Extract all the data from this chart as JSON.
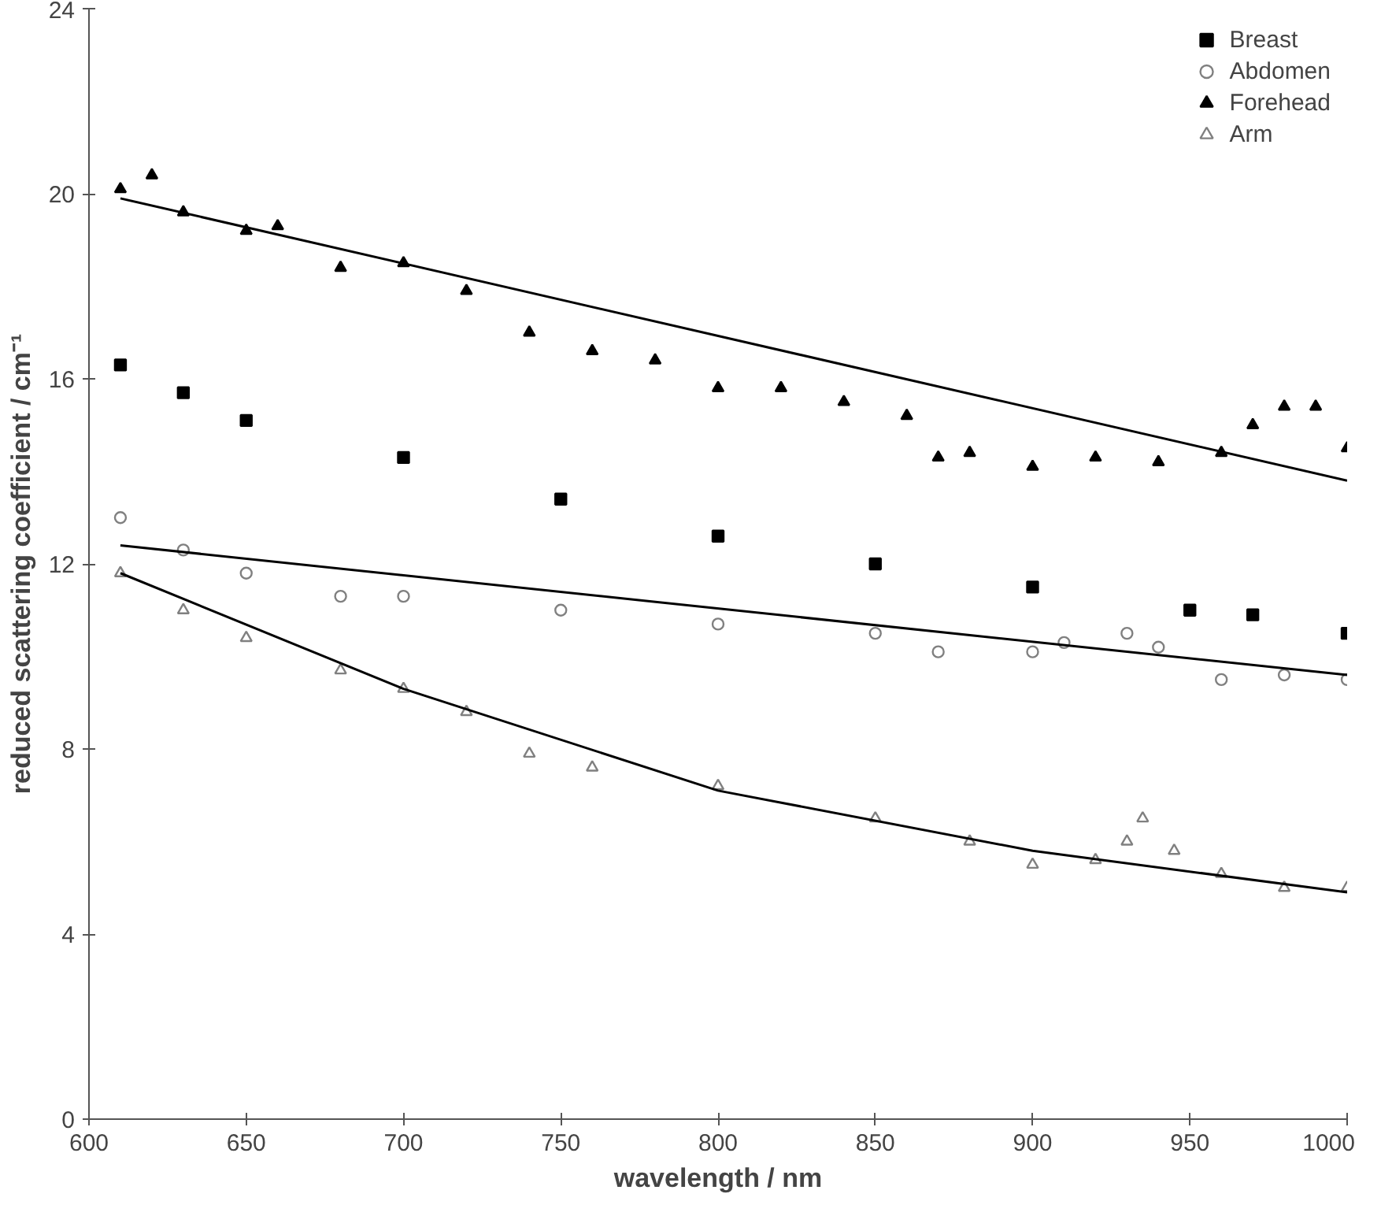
{
  "chart_data": {
    "type": "scatter",
    "xlabel": "wavelength / nm",
    "ylabel": "reduced scattering coefficient / cm⁻¹",
    "xlim": [
      600,
      1000
    ],
    "ylim": [
      0,
      24
    ],
    "xticks": [
      600,
      650,
      700,
      750,
      800,
      850,
      900,
      950,
      1000
    ],
    "yticks": [
      0,
      4,
      8,
      12,
      16,
      20,
      24
    ],
    "grid": false,
    "legend": "top right",
    "series": [
      {
        "name": "Breast",
        "color": "#000000",
        "marker": "square",
        "x": [
          610,
          630,
          650,
          700,
          750,
          800,
          850,
          900,
          950,
          970,
          1000
        ],
        "values": [
          16.3,
          15.7,
          15.1,
          14.3,
          13.4,
          12.6,
          12.0,
          11.5,
          11.0,
          10.9,
          10.5
        ]
      },
      {
        "name": "Abdomen",
        "color": "#808080",
        "marker": "circle",
        "x": [
          610,
          630,
          650,
          680,
          700,
          750,
          800,
          850,
          870,
          900,
          910,
          930,
          940,
          960,
          980,
          1000
        ],
        "values": [
          13.0,
          12.3,
          11.8,
          11.3,
          11.3,
          11.0,
          10.7,
          10.5,
          10.1,
          10.1,
          10.3,
          10.5,
          10.2,
          9.5,
          9.6,
          9.5
        ]
      },
      {
        "name": "Forehead",
        "color": "#000000",
        "marker": "triangle",
        "x": [
          610,
          620,
          630,
          650,
          660,
          680,
          700,
          720,
          740,
          760,
          780,
          800,
          820,
          840,
          860,
          870,
          880,
          900,
          920,
          940,
          960,
          970,
          980,
          990,
          1000
        ],
        "values": [
          20.1,
          20.4,
          19.6,
          19.2,
          19.3,
          18.4,
          18.5,
          17.9,
          17.0,
          16.6,
          16.4,
          15.8,
          15.8,
          15.5,
          15.2,
          14.3,
          14.4,
          14.1,
          14.3,
          14.2,
          14.4,
          15.0,
          15.4,
          15.4,
          14.5
        ]
      },
      {
        "name": "Arm",
        "color": "#808080",
        "marker": "triangle_open",
        "x": [
          610,
          630,
          650,
          680,
          700,
          720,
          740,
          760,
          800,
          850,
          880,
          900,
          920,
          930,
          935,
          945,
          960,
          980,
          1000
        ],
        "values": [
          11.8,
          11.0,
          10.4,
          9.7,
          9.3,
          8.8,
          7.9,
          7.6,
          7.2,
          6.5,
          6.0,
          5.5,
          5.6,
          6.0,
          6.5,
          5.8,
          5.3,
          5.0,
          5.0
        ]
      },
      {
        "type": "line",
        "color": "#000000",
        "x": [
          610,
          1000
        ],
        "values": [
          19.9,
          13.8
        ]
      },
      {
        "type": "line",
        "color": "#000000",
        "x": [
          610,
          1000
        ],
        "values": [
          12.4,
          9.6
        ]
      },
      {
        "type": "line",
        "color": "#000000",
        "x": [
          610,
          700,
          800,
          900,
          1000
        ],
        "values": [
          11.8,
          9.3,
          7.1,
          5.8,
          4.9
        ]
      }
    ]
  }
}
